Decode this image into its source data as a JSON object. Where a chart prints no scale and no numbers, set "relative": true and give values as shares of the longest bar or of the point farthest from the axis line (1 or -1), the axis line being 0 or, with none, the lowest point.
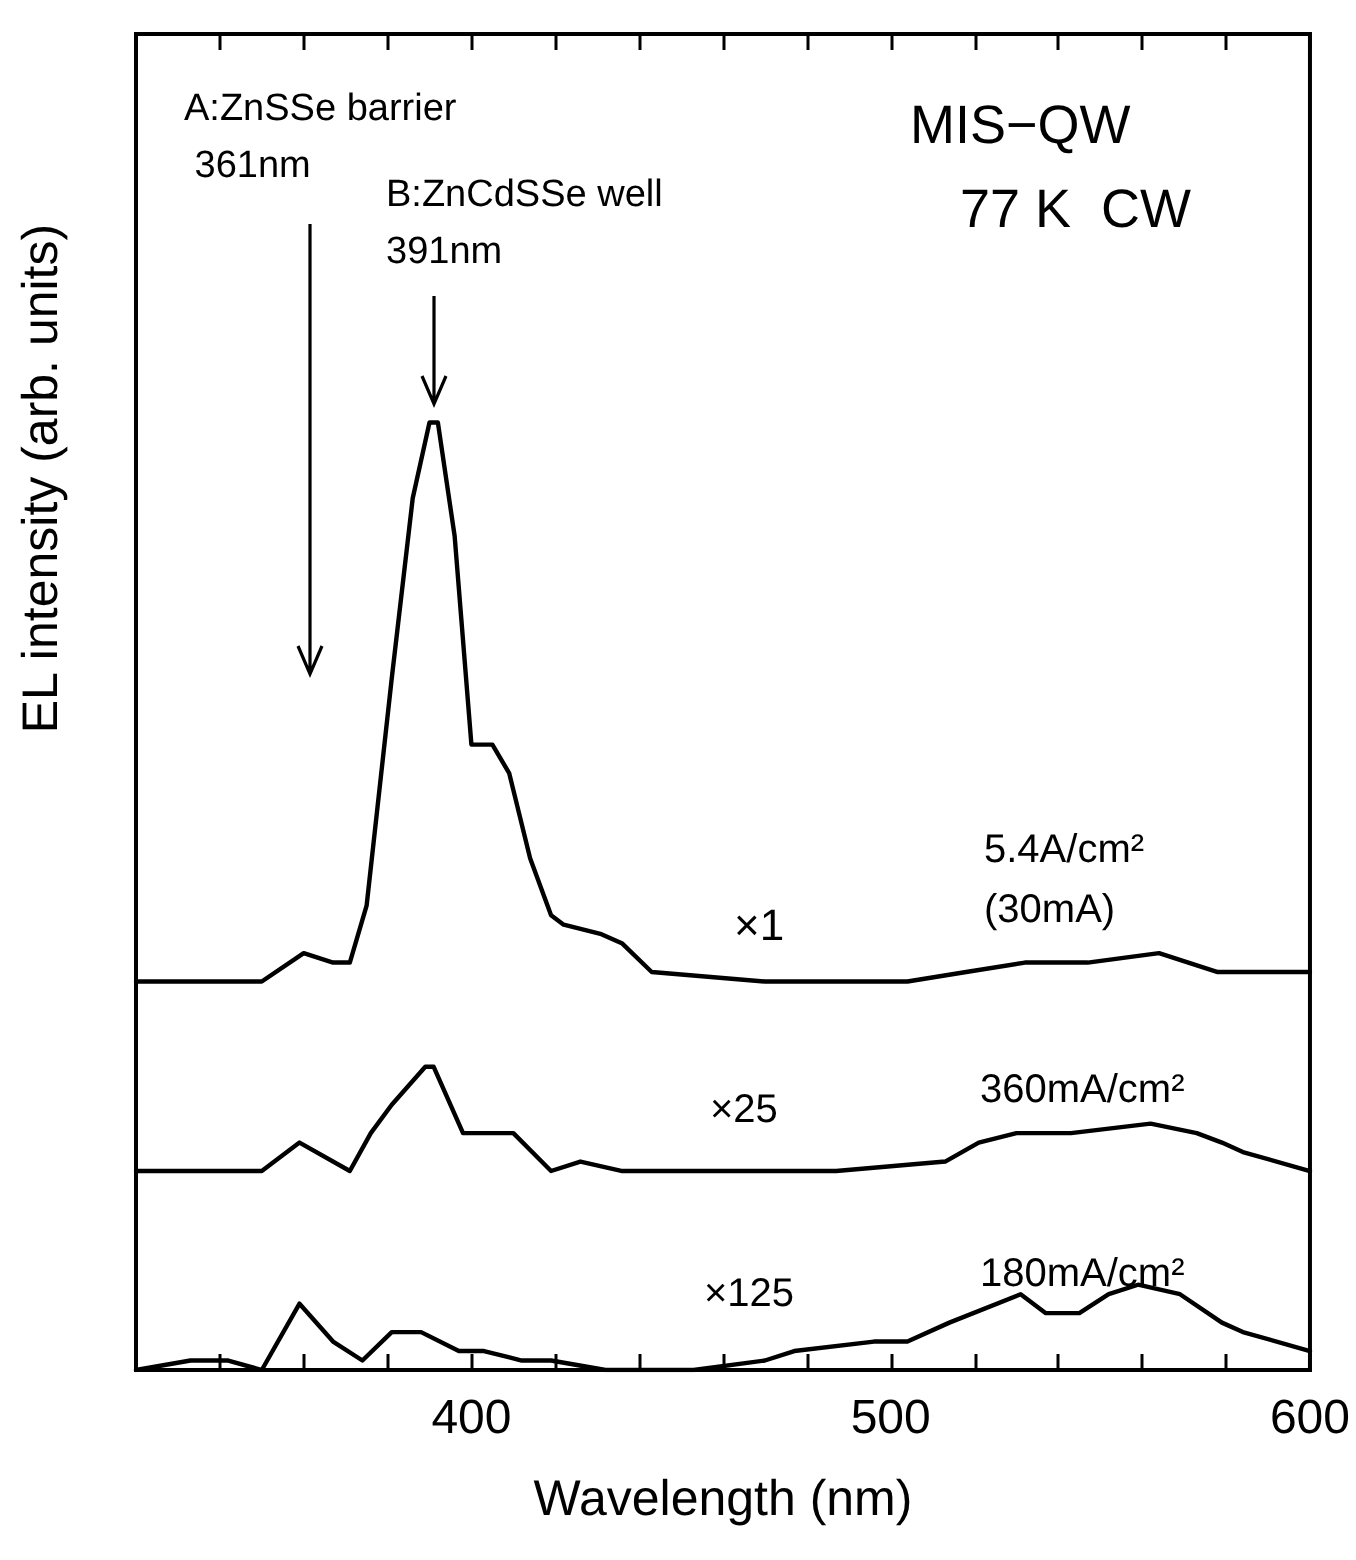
{
  "chart_data": {
    "type": "line",
    "relative": true,
    "xlabel": "Wavelength (nm)",
    "ylabel": "EL intensity (arb. units)",
    "xlim": [
      320,
      600
    ],
    "xticks": [
      {
        "value": 340,
        "label": null
      },
      {
        "value": 360,
        "label": null
      },
      {
        "value": 380,
        "label": null
      },
      400,
      {
        "value": 420,
        "label": null
      },
      {
        "value": 440,
        "label": null
      },
      {
        "value": 460,
        "label": null
      },
      {
        "value": 480,
        "label": null
      },
      500,
      {
        "value": 520,
        "label": null
      },
      {
        "value": 540,
        "label": null
      },
      {
        "value": 560,
        "label": null
      },
      {
        "value": 580,
        "label": null
      },
      600
    ],
    "line_style": "solid",
    "series": [
      {
        "color": "#000000",
        "x": [
          320,
          350,
          360,
          367,
          371,
          375,
          381,
          386,
          390,
          392,
          396,
          400,
          405,
          409,
          414,
          419,
          422,
          431,
          436,
          443,
          470,
          504,
          518,
          532,
          547,
          564,
          578,
          584,
          600
        ],
        "values": [
          0.41,
          0.41,
          0.44,
          0.43,
          0.43,
          0.49,
          0.73,
          0.92,
          1.0,
          1.0,
          0.88,
          0.66,
          0.66,
          0.63,
          0.54,
          0.48,
          0.47,
          0.46,
          0.45,
          0.42,
          0.41,
          0.41,
          0.42,
          0.43,
          0.43,
          0.44,
          0.42,
          0.42,
          0.42
        ]
      },
      {
        "color": "#000000",
        "x": [
          320,
          350,
          359,
          371,
          376,
          381,
          389,
          391,
          398,
          402,
          410,
          419,
          426,
          436,
          453,
          487,
          513,
          521,
          530,
          543,
          562,
          573,
          579,
          584,
          600
        ],
        "values": [
          0.21,
          0.21,
          0.24,
          0.21,
          0.25,
          0.28,
          0.32,
          0.32,
          0.25,
          0.25,
          0.25,
          0.21,
          0.22,
          0.21,
          0.21,
          0.21,
          0.22,
          0.24,
          0.25,
          0.25,
          0.26,
          0.25,
          0.24,
          0.23,
          0.21
        ]
      },
      {
        "color": "#000000",
        "x": [
          320,
          333,
          342,
          350,
          359,
          367,
          374,
          381,
          388,
          397,
          403,
          412,
          419,
          432,
          453,
          470,
          477,
          496,
          504,
          514,
          531,
          537,
          545,
          552,
          559,
          569,
          579,
          584,
          600
        ],
        "values": [
          0.0,
          0.01,
          0.01,
          0.0,
          0.07,
          0.03,
          0.01,
          0.04,
          0.04,
          0.02,
          0.02,
          0.01,
          0.01,
          0.0,
          0.0,
          0.01,
          0.02,
          0.03,
          0.03,
          0.05,
          0.08,
          0.06,
          0.06,
          0.08,
          0.09,
          0.08,
          0.05,
          0.04,
          0.02
        ]
      }
    ],
    "annotations": [
      "A:ZnSSe barrier\n 361nm",
      "B:ZnCdSSe well\n391nm",
      "MIS−QW",
      "77 K  CW",
      "×1",
      "5.4A/cm²\n(30mA)",
      "×25",
      "360mA/cm²",
      "×125",
      "180mA/cm²"
    ]
  }
}
